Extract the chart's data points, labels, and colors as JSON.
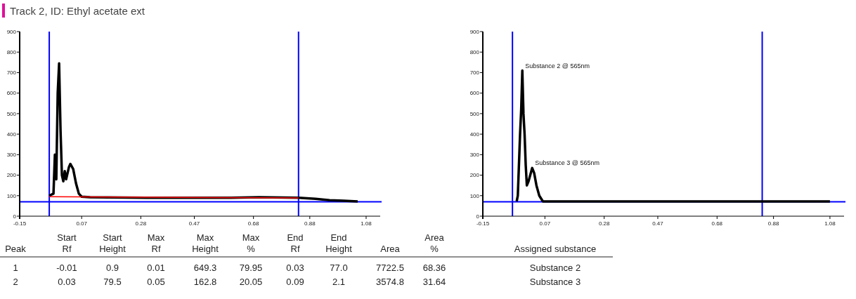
{
  "chart_data": [
    {
      "type": "line",
      "title": "Track 2, ID: Ethyl acetate ext",
      "xlim": [
        -0.15,
        1.13
      ],
      "ylim": [
        0,
        900
      ],
      "xticks": [
        -0.15,
        0.07,
        0.28,
        0.47,
        0.68,
        0.88,
        1.08
      ],
      "yticks": [
        0,
        100,
        200,
        300,
        400,
        500,
        600,
        700,
        800,
        900
      ],
      "marker": "none",
      "line_style": "solid",
      "series": [
        {
          "color": "#000000",
          "x": [
            -0.045,
            -0.03,
            -0.025,
            -0.02,
            -0.015,
            -0.01,
            -0.005,
            0.0,
            0.005,
            0.01,
            0.015,
            0.025,
            0.03,
            0.04,
            0.05,
            0.06,
            0.07,
            0.1,
            0.3,
            0.6,
            0.7,
            0.84,
            0.9,
            0.95,
            1.0,
            1.05
          ],
          "values": [
            100,
            110,
            300,
            180,
            600,
            745,
            420,
            200,
            170,
            220,
            180,
            240,
            255,
            230,
            160,
            110,
            95,
            92,
            90,
            90,
            92,
            90,
            85,
            78,
            75,
            72
          ]
        },
        {
          "color": "#ff0000",
          "x": [
            -0.045,
            0.84
          ],
          "values": [
            95,
            89
          ]
        }
      ],
      "ref_lines": [
        {
          "axis": "x",
          "value": -0.045,
          "color": "#0000ff"
        },
        {
          "axis": "x",
          "value": 0.84,
          "color": "#0000ff"
        },
        {
          "axis": "y",
          "value": 70,
          "color": "#0000ff"
        }
      ]
    },
    {
      "type": "line",
      "xlim": [
        -0.15,
        1.13
      ],
      "ylim": [
        0,
        900
      ],
      "xticks": [
        -0.15,
        0.07,
        0.28,
        0.47,
        0.68,
        0.88,
        1.08
      ],
      "yticks": [
        0,
        100,
        200,
        300,
        400,
        500,
        600,
        700,
        800,
        900
      ],
      "marker": "none",
      "line_style": "solid",
      "series": [
        {
          "color": "#000000",
          "x": [
            -0.03,
            -0.026,
            -0.018,
            -0.014,
            -0.01,
            -0.006,
            -0.002,
            0.002,
            0.006,
            0.012,
            0.018,
            0.025,
            0.032,
            0.04,
            0.05,
            0.063,
            0.2,
            0.6,
            1.0,
            1.08
          ],
          "values": [
            72,
            100,
            400,
            520,
            710,
            500,
            400,
            250,
            150,
            170,
            200,
            235,
            210,
            150,
            100,
            72,
            72,
            72,
            72,
            72
          ]
        }
      ],
      "ref_lines": [
        {
          "axis": "x",
          "value": -0.045,
          "color": "#0000ff"
        },
        {
          "axis": "x",
          "value": 0.84,
          "color": "#0000ff"
        },
        {
          "axis": "y",
          "value": 70,
          "color": "#0000ff"
        }
      ],
      "annotations": [
        {
          "text": "Substance 2 @ 565nm",
          "x": -0.01,
          "y": 710
        },
        {
          "text": "Substance 3 @ 565nm",
          "x": 0.025,
          "y": 235
        }
      ]
    },
    {
      "type": "other",
      "categories": [
        "Peak",
        "Start\nRf",
        "Start\nHeight",
        "Max\nRf",
        "Max\nHeight",
        "Max\n%",
        "End\nRf",
        "End\nHeight",
        "Area",
        "Area\n%",
        "Assigned substance"
      ],
      "cell_labels": [
        [
          "1",
          "-0.01",
          "0.9",
          "0.01",
          "649.3",
          "79.95",
          "0.03",
          "77.0",
          "7722.5",
          "68.36",
          "Substance 2"
        ],
        [
          "2",
          "0.03",
          "79.5",
          "0.05",
          "162.8",
          "20.05",
          "0.09",
          "2.1",
          "3574.8",
          "31.64",
          "Substance 3"
        ]
      ]
    }
  ]
}
